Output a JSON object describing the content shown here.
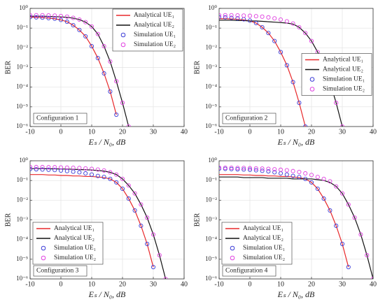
{
  "chart_data": [
    {
      "type": "line",
      "yscale": "log",
      "grid": true,
      "legend": "upper right",
      "annotation": "Configuration 1",
      "xlabel": "Eₛ / N₀, dB",
      "ylabel": "BER",
      "xlim": [
        -10,
        40
      ],
      "xticks": [
        -10,
        0,
        10,
        20,
        30,
        40
      ],
      "ylim": [
        1e-06,
        1
      ],
      "yticks": [
        {
          "value": 1,
          "label": "10⁰"
        },
        {
          "value": 0.1,
          "label": "10⁻¹"
        },
        {
          "value": 0.01,
          "label": "10⁻²"
        },
        {
          "value": 0.001,
          "label": "10⁻³"
        },
        {
          "value": 0.0001,
          "label": "10⁻⁴"
        },
        {
          "value": 1e-05,
          "label": "10⁻⁵"
        },
        {
          "value": 1e-06,
          "label": "10⁻⁶"
        }
      ],
      "x": [
        -10,
        -8,
        -6,
        -4,
        -2,
        0,
        2,
        4,
        6,
        8,
        10,
        12,
        14,
        16,
        18,
        20,
        22
      ],
      "series": [
        {
          "name": "Analytical UE₁",
          "color": "#e8292b",
          "mode": "line",
          "values": [
            0.36,
            0.35,
            0.34,
            0.32,
            0.3,
            0.26,
            0.21,
            0.14,
            0.08,
            0.038,
            0.012,
            0.003,
            0.0005,
            6e-05,
            4e-06,
            null,
            null
          ]
        },
        {
          "name": "Analytical UE₂",
          "color": "#111111",
          "mode": "line",
          "values": [
            0.4,
            0.4,
            0.4,
            0.39,
            0.38,
            0.37,
            0.35,
            0.32,
            0.27,
            0.2,
            0.12,
            0.05,
            0.012,
            0.002,
            0.0002,
            1.6e-05,
            1e-06
          ]
        },
        {
          "name": "Simulation UE₁",
          "color": "#3a3ad6",
          "mode": "markers",
          "values": [
            0.36,
            0.35,
            0.34,
            0.32,
            0.3,
            0.26,
            0.21,
            0.14,
            0.08,
            0.038,
            0.012,
            0.003,
            0.0005,
            6e-05,
            4e-06,
            null,
            null
          ]
        },
        {
          "name": "Simulation UE₂",
          "color": "#e040e0",
          "mode": "markers",
          "values": [
            0.45,
            0.45,
            0.45,
            0.44,
            0.43,
            0.41,
            0.38,
            0.33,
            0.27,
            0.2,
            0.12,
            0.05,
            0.012,
            0.002,
            0.0002,
            1.6e-05,
            1e-06
          ]
        }
      ]
    },
    {
      "type": "line",
      "yscale": "log",
      "grid": true,
      "legend": "center right",
      "annotation": "Configuration 2",
      "xlabel": "Eₛ / N₀, dB",
      "ylabel": "BER",
      "xlim": [
        -10,
        40
      ],
      "xticks": [
        -10,
        0,
        10,
        20,
        30,
        40
      ],
      "ylim": [
        1e-06,
        1
      ],
      "yticks": [
        {
          "value": 1,
          "label": "10⁰"
        },
        {
          "value": 0.1,
          "label": "10⁻¹"
        },
        {
          "value": 0.01,
          "label": "10⁻²"
        },
        {
          "value": 0.001,
          "label": "10⁻³"
        },
        {
          "value": 0.0001,
          "label": "10⁻⁴"
        },
        {
          "value": 1e-05,
          "label": "10⁻⁵"
        },
        {
          "value": 1e-06,
          "label": "10⁻⁶"
        }
      ],
      "x": [
        -10,
        -8,
        -6,
        -4,
        -2,
        0,
        2,
        4,
        6,
        8,
        10,
        12,
        14,
        16,
        18,
        20,
        22,
        24,
        26,
        28,
        30
      ],
      "series": [
        {
          "name": "Analytical UE₁",
          "color": "#e8292b",
          "mode": "line",
          "values": [
            0.3,
            0.3,
            0.29,
            0.28,
            0.26,
            0.23,
            0.18,
            0.11,
            0.056,
            0.022,
            0.006,
            0.0013,
            0.00018,
            1.6e-05,
            1e-06,
            null,
            null,
            null,
            null,
            null,
            null
          ]
        },
        {
          "name": "Analytical UE₂",
          "color": "#111111",
          "mode": "line",
          "values": [
            0.25,
            0.25,
            0.25,
            0.24,
            0.24,
            0.23,
            0.23,
            0.22,
            0.21,
            0.2,
            0.19,
            0.18,
            0.16,
            0.11,
            0.056,
            0.022,
            0.006,
            0.0013,
            0.00018,
            1.6e-05,
            1e-06
          ]
        },
        {
          "name": "Simulation UE₁",
          "color": "#3a3ad6",
          "mode": "markers",
          "values": [
            0.36,
            0.35,
            0.33,
            0.31,
            0.28,
            0.24,
            0.18,
            0.11,
            0.056,
            0.022,
            0.006,
            0.0013,
            0.00018,
            1.6e-05,
            1e-06,
            null,
            null,
            null,
            null,
            null,
            null
          ]
        },
        {
          "name": "Simulation UE₂",
          "color": "#e040e0",
          "mode": "markers",
          "values": [
            0.45,
            0.45,
            0.45,
            0.44,
            0.43,
            0.42,
            0.4,
            0.38,
            0.35,
            0.31,
            0.27,
            0.22,
            0.17,
            0.11,
            0.056,
            0.022,
            0.006,
            0.0013,
            0.00018,
            1.6e-05,
            1e-06
          ]
        }
      ]
    },
    {
      "type": "line",
      "yscale": "log",
      "grid": true,
      "legend": "lower left",
      "annotation": "Configuration 3",
      "xlabel": "Eₛ / N₀, dB",
      "ylabel": "BER",
      "xlim": [
        -10,
        40
      ],
      "xticks": [
        -10,
        0,
        10,
        20,
        30,
        40
      ],
      "ylim": [
        1e-06,
        1
      ],
      "yticks": [
        {
          "value": 1,
          "label": "10⁰"
        },
        {
          "value": 0.1,
          "label": "10⁻¹"
        },
        {
          "value": 0.01,
          "label": "10⁻²"
        },
        {
          "value": 0.001,
          "label": "10⁻³"
        },
        {
          "value": 0.0001,
          "label": "10⁻⁴"
        },
        {
          "value": 1e-05,
          "label": "10⁻⁵"
        },
        {
          "value": 1e-06,
          "label": "10⁻⁶"
        }
      ],
      "x": [
        -10,
        -8,
        -6,
        -4,
        -2,
        0,
        2,
        4,
        6,
        8,
        10,
        12,
        14,
        16,
        18,
        20,
        22,
        24,
        26,
        28,
        30,
        32,
        34
      ],
      "series": [
        {
          "name": "Analytical UE₁",
          "color": "#e8292b",
          "mode": "line",
          "values": [
            0.2,
            0.2,
            0.2,
            0.19,
            0.19,
            0.18,
            0.18,
            0.17,
            0.17,
            0.16,
            0.16,
            0.15,
            0.14,
            0.12,
            0.08,
            0.038,
            0.012,
            0.003,
            0.0005,
            6e-05,
            4e-06,
            null,
            null
          ]
        },
        {
          "name": "Analytical UE₂",
          "color": "#111111",
          "mode": "line",
          "values": [
            0.4,
            0.4,
            0.4,
            0.39,
            0.39,
            0.38,
            0.38,
            0.37,
            0.36,
            0.35,
            0.34,
            0.32,
            0.3,
            0.26,
            0.2,
            0.12,
            0.056,
            0.022,
            0.006,
            0.0013,
            0.00018,
            1.6e-05,
            1e-06
          ]
        },
        {
          "name": "Simulation UE₁",
          "color": "#3a3ad6",
          "mode": "markers",
          "values": [
            0.38,
            0.37,
            0.36,
            0.35,
            0.34,
            0.32,
            0.3,
            0.28,
            0.26,
            0.23,
            0.2,
            0.17,
            0.15,
            0.12,
            0.08,
            0.038,
            0.012,
            0.003,
            0.0005,
            6e-05,
            4e-06,
            null,
            null
          ]
        },
        {
          "name": "Simulation UE₂",
          "color": "#e040e0",
          "mode": "markers",
          "values": [
            0.48,
            0.48,
            0.48,
            0.47,
            0.47,
            0.46,
            0.45,
            0.44,
            0.43,
            0.41,
            0.39,
            0.36,
            0.32,
            0.26,
            0.2,
            0.12,
            0.056,
            0.022,
            0.006,
            0.0013,
            0.00018,
            1.6e-05,
            1e-06
          ]
        }
      ]
    },
    {
      "type": "line",
      "yscale": "log",
      "grid": true,
      "legend": "lower left",
      "annotation": "Configuration 4",
      "xlabel": "Eₛ / N₀, dB",
      "ylabel": "BER",
      "xlim": [
        -10,
        40
      ],
      "xticks": [
        -10,
        0,
        10,
        20,
        30,
        40
      ],
      "ylim": [
        1e-06,
        1
      ],
      "yticks": [
        {
          "value": 1,
          "label": "10⁰"
        },
        {
          "value": 0.1,
          "label": "10⁻¹"
        },
        {
          "value": 0.01,
          "label": "10⁻²"
        },
        {
          "value": 0.001,
          "label": "10⁻³"
        },
        {
          "value": 0.0001,
          "label": "10⁻⁴"
        },
        {
          "value": 1e-05,
          "label": "10⁻⁵"
        },
        {
          "value": 1e-06,
          "label": "10⁻⁶"
        }
      ],
      "x": [
        -10,
        -8,
        -6,
        -4,
        -2,
        0,
        2,
        4,
        6,
        8,
        10,
        12,
        14,
        16,
        18,
        20,
        22,
        24,
        26,
        28,
        30,
        32,
        34,
        36,
        38,
        40
      ],
      "series": [
        {
          "name": "Analytical UE₁",
          "color": "#e8292b",
          "mode": "line",
          "values": [
            0.2,
            0.2,
            0.2,
            0.2,
            0.19,
            0.19,
            0.18,
            0.18,
            0.17,
            0.17,
            0.16,
            0.16,
            0.15,
            0.14,
            0.12,
            0.08,
            0.038,
            0.012,
            0.003,
            0.0005,
            6e-05,
            4e-06,
            null,
            null,
            null,
            null
          ]
        },
        {
          "name": "Analytical UE₂",
          "color": "#111111",
          "mode": "line",
          "values": [
            0.15,
            0.15,
            0.15,
            0.15,
            0.14,
            0.14,
            0.14,
            0.14,
            0.13,
            0.13,
            0.13,
            0.13,
            0.12,
            0.12,
            0.12,
            0.12,
            0.11,
            0.1,
            0.08,
            0.05,
            0.022,
            0.006,
            0.0013,
            0.00018,
            1.6e-05,
            1e-06
          ]
        },
        {
          "name": "Simulation UE₁",
          "color": "#3a3ad6",
          "mode": "markers",
          "values": [
            0.4,
            0.39,
            0.38,
            0.37,
            0.36,
            0.35,
            0.33,
            0.31,
            0.29,
            0.26,
            0.23,
            0.2,
            0.17,
            0.15,
            0.12,
            0.08,
            0.038,
            0.012,
            0.003,
            0.0005,
            6e-05,
            4e-06,
            null,
            null,
            null,
            null
          ]
        },
        {
          "name": "Simulation UE₂",
          "color": "#e040e0",
          "mode": "markers",
          "values": [
            0.45,
            0.44,
            0.44,
            0.43,
            0.43,
            0.42,
            0.41,
            0.4,
            0.39,
            0.37,
            0.35,
            0.33,
            0.3,
            0.27,
            0.23,
            0.19,
            0.15,
            0.12,
            0.09,
            0.05,
            0.022,
            0.006,
            0.0013,
            0.00018,
            1.6e-05,
            1e-06
          ]
        }
      ]
    }
  ]
}
